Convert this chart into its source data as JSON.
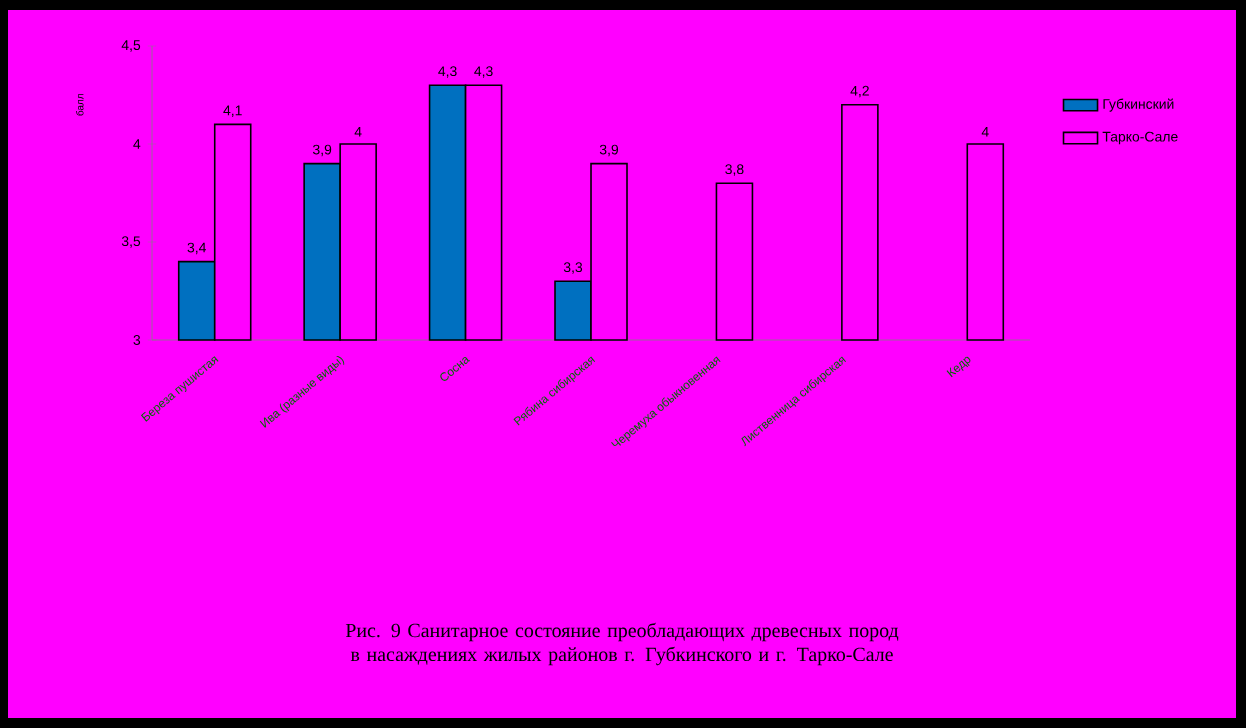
{
  "chart_data": {
    "type": "bar",
    "title": "Рис. 9 Санитарное состояние преобладающих древесных пород в насаждениях жилых районов г. Губкинского и г. Тарко-Сале",
    "ylabel": "балл",
    "categories": [
      "Береза пушистая",
      "Ива (разные виды)",
      "Сосна",
      "Рябина сибирская",
      "Черемуха обыкновенная",
      "Лиственница сибирская",
      "Кедр"
    ],
    "series": [
      {
        "name": "Губкинский",
        "color": "#0070c0",
        "values": [
          3.4,
          3.9,
          4.3,
          3.3,
          null,
          null,
          null
        ],
        "value_labels": [
          "3,4",
          "3,9",
          "4,3",
          "3,3",
          null,
          null,
          null
        ]
      },
      {
        "name": "Тарко-Сале",
        "color": "#ff00ff",
        "values": [
          4.1,
          4.0,
          4.3,
          3.9,
          3.8,
          4.2,
          4.0
        ],
        "value_labels": [
          "4,1",
          "4",
          "4,3",
          "3,9",
          "3,8",
          "4,2",
          "4"
        ]
      }
    ],
    "ylim": [
      3,
      4.5
    ],
    "yticks": [
      3,
      {
        "value": 3.5,
        "label": "3,5"
      },
      4,
      {
        "value": 4.5,
        "label": "4,5"
      }
    ],
    "legend": "right"
  }
}
